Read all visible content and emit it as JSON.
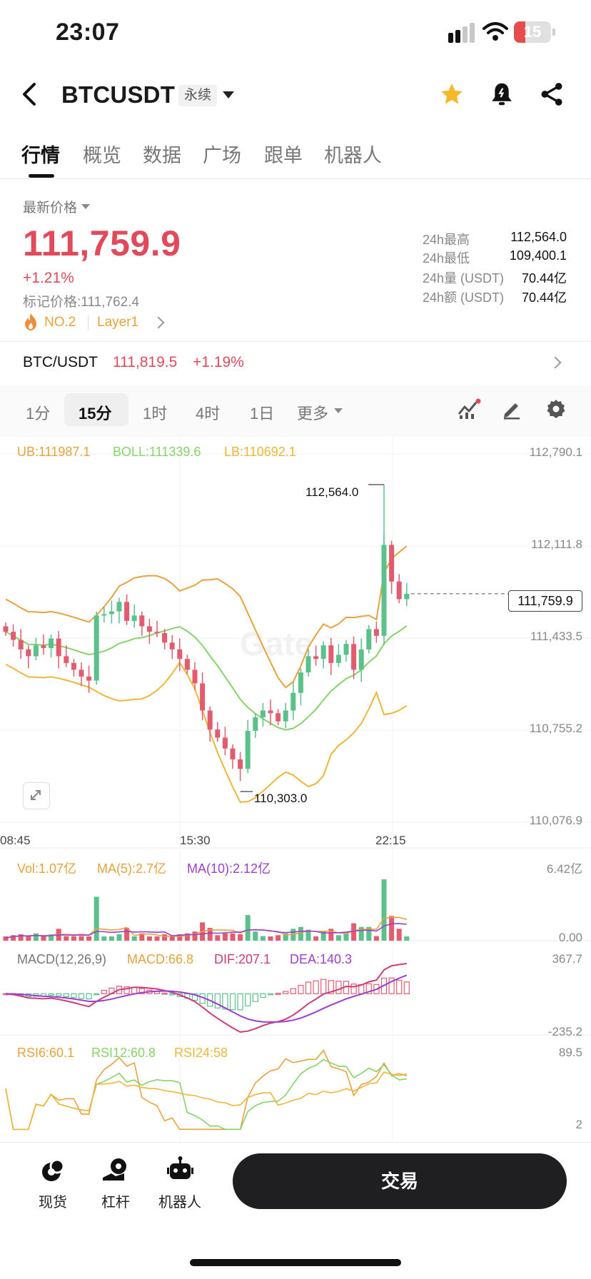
{
  "status_bar": {
    "time": "23:07",
    "battery": "15"
  },
  "header": {
    "pair": "BTCUSDT",
    "contract_type": "永续"
  },
  "tabs": [
    "行情",
    "概览",
    "数据",
    "广场",
    "跟单",
    "机器人"
  ],
  "price": {
    "latest_label": "最新价格",
    "latest": "111,759.9",
    "change_pct": "+1.21%",
    "mark_label": "标记价格:",
    "mark_price": "111,762.4",
    "rank": "NO.2",
    "tag": "Layer1"
  },
  "stats": [
    {
      "label": "24h最高",
      "value": "112,564.0"
    },
    {
      "label": "24h最低",
      "value": "109,400.1"
    },
    {
      "label": "24h量 (USDT)",
      "value": "70.44亿"
    },
    {
      "label": "24h额 (USDT)",
      "value": "70.44亿"
    }
  ],
  "spot": {
    "pair": "BTC/USDT",
    "price": "111,819.5",
    "change_pct": "+1.19%"
  },
  "intervals": {
    "items": [
      "1分",
      "15分",
      "1时",
      "4时",
      "1日"
    ],
    "more": "更多",
    "active": "15分"
  },
  "chart_data": {
    "type": "candlestick",
    "indicators": {
      "boll": {
        "ub": "UB:111987.1",
        "mid": "BOLL:111339.6",
        "lb": "LB:110692.1"
      },
      "vol": {
        "vol": "Vol:1.07亿",
        "ma5": "MA(5):2.7亿",
        "ma10": "MA(10):2.12亿"
      },
      "macd": {
        "title": "MACD(12,26,9)",
        "macd": "MACD:66.8",
        "dif": "DIF:207.1",
        "dea": "DEA:140.3"
      },
      "rsi": {
        "rsi6": "RSI6:60.1",
        "rsi12": "RSI12:60.8",
        "rsi24": "RSI24:58"
      }
    },
    "y_axis": [
      "112,790.1",
      "112,111.8",
      "111,433.5",
      "110,755.2",
      "110,076.9"
    ],
    "ylim": [
      110076.9,
      112790.1
    ],
    "x_axis": [
      "08:45",
      "15:30",
      "22:15"
    ],
    "high_label": "112,564.0",
    "low_label": "110,303.0",
    "current_price": "111,759.9",
    "high": 112564.0,
    "low": 110303.0,
    "current": 111759.9,
    "vol_axis": {
      "max": "6.42亿",
      "min": "0.00"
    },
    "macd_axis": {
      "max": "367.7",
      "min": "-235.2"
    },
    "rsi_axis": {
      "max": "89.5",
      "min": "2"
    },
    "closes": [
      111480,
      111420,
      111350,
      111300,
      111380,
      111360,
      111430,
      111300,
      111250,
      111200,
      111150,
      111120,
      111600,
      111610,
      111630,
      111700,
      111560,
      111600,
      111520,
      111480,
      111470,
      111400,
      111350,
      111280,
      111200,
      111100,
      110900,
      110760,
      110700,
      110620,
      110540,
      110470,
      110750,
      110850,
      110900,
      110880,
      110820,
      110900,
      111030,
      111180,
      111300,
      111280,
      111380,
      111250,
      111310,
      111390,
      111200,
      111350,
      111500,
      111450,
      112120,
      111850,
      111720,
      111760
    ],
    "colors": {
      "up": "#5bc08a",
      "down": "#e35c6e",
      "ub": "#e8a23b",
      "mid": "#86d36a",
      "lb": "#eeb737",
      "macd_dif": "#cf3b78",
      "macd_dea": "#9b3fd0"
    }
  },
  "bottom_nav": {
    "items": [
      "现货",
      "杠杆",
      "机器人"
    ],
    "trade": "交易"
  }
}
